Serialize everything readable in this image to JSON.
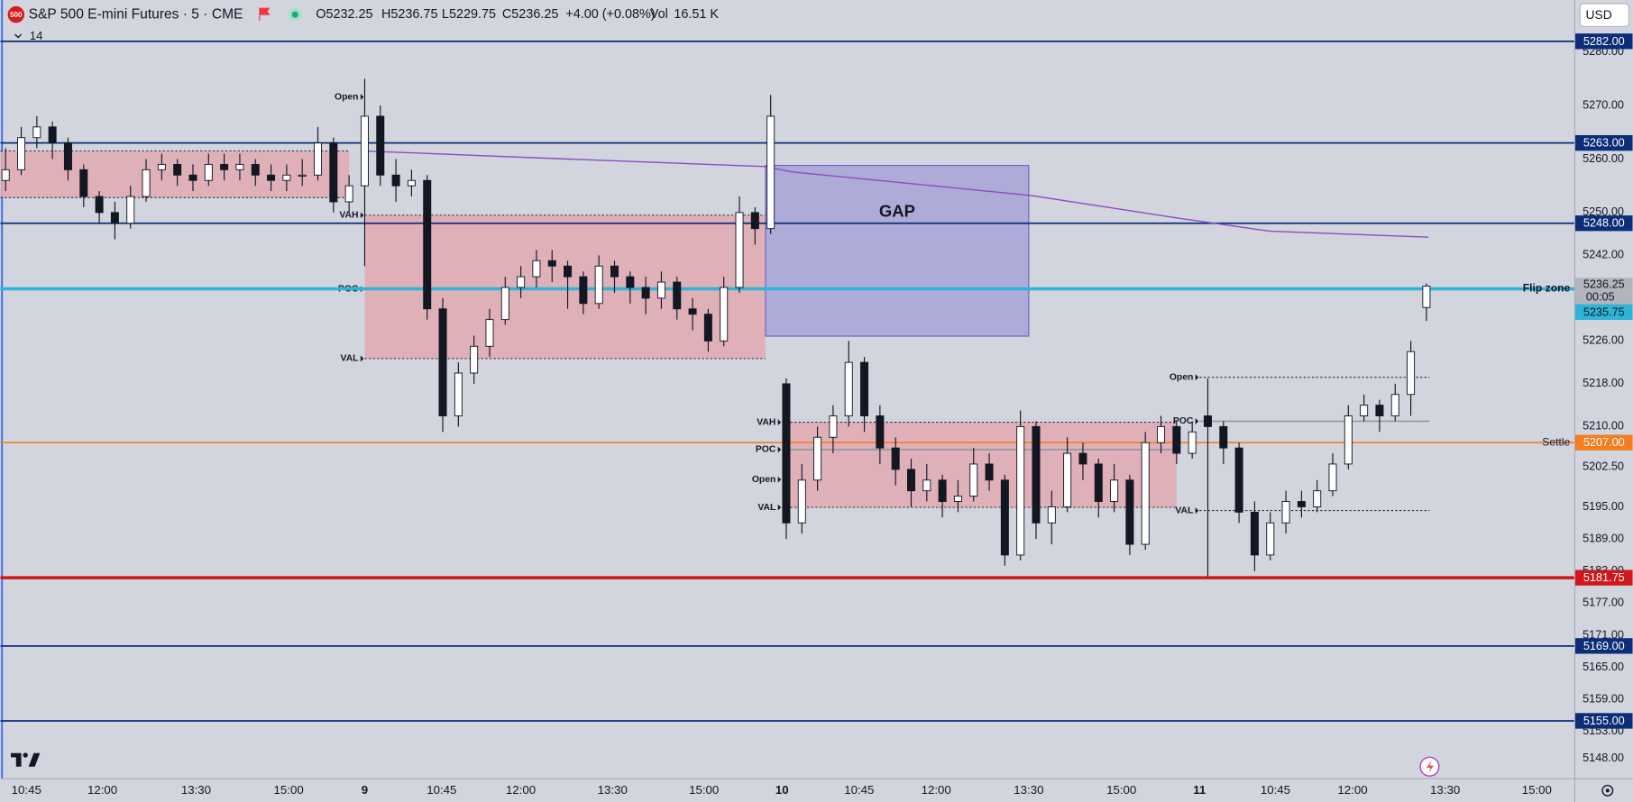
{
  "chart_data": {
    "type": "candlestick",
    "title": "S&P 500 E-mini Futures · 5 · CME",
    "logo": "500",
    "indicators_count": "14",
    "currency": "USD",
    "header": {
      "open": "O5232.25",
      "high": "H5236.75",
      "low": "L5229.75",
      "close": "C5236.25",
      "change": "+4.00 (+0.08%)",
      "vol_label": "Vol",
      "vol": "16.51 K"
    },
    "up_color": "#ffffff",
    "down_color": "#131722",
    "candles": [
      [
        5256,
        5262,
        5254,
        5258
      ],
      [
        5258,
        5266,
        5257,
        5264
      ],
      [
        5264,
        5268,
        5262,
        5266
      ],
      [
        5266,
        5267,
        5260,
        5263
      ],
      [
        5263,
        5264,
        5256,
        5258
      ],
      [
        5258,
        5259,
        5251,
        5253
      ],
      [
        5253,
        5254,
        5248,
        5250
      ],
      [
        5250,
        5252,
        5245,
        5248
      ],
      [
        5248,
        5255,
        5247,
        5253
      ],
      [
        5253,
        5260,
        5252,
        5258
      ],
      [
        5258,
        5261,
        5256,
        5259
      ],
      [
        5259,
        5260,
        5255,
        5257
      ],
      [
        5257,
        5259,
        5254,
        5256
      ],
      [
        5256,
        5261,
        5255,
        5259
      ],
      [
        5259,
        5261,
        5256,
        5258
      ],
      [
        5258,
        5261,
        5256,
        5259
      ],
      [
        5259,
        5260,
        5255,
        5257
      ],
      [
        5257,
        5259,
        5254,
        5256
      ],
      [
        5256,
        5259,
        5254,
        5257
      ],
      [
        5257,
        5260,
        5255,
        5257
      ],
      [
        5257,
        5266,
        5256,
        5263
      ],
      [
        5263,
        5264,
        5250,
        5252
      ],
      [
        5252,
        5257,
        5250,
        5255
      ],
      [
        5255,
        5275,
        5240,
        5268
      ],
      [
        5268,
        5270,
        5255,
        5257
      ],
      [
        5257,
        5260,
        5252,
        5255
      ],
      [
        5255,
        5258,
        5253,
        5256
      ],
      [
        5256,
        5257,
        5230,
        5232
      ],
      [
        5232,
        5234,
        5209,
        5212
      ],
      [
        5212,
        5222,
        5210,
        5220
      ],
      [
        5220,
        5227,
        5218,
        5225
      ],
      [
        5225,
        5232,
        5223,
        5230
      ],
      [
        5230,
        5238,
        5229,
        5236
      ],
      [
        5236,
        5240,
        5234,
        5238
      ],
      [
        5238,
        5243,
        5236,
        5241
      ],
      [
        5241,
        5243,
        5237,
        5240
      ],
      [
        5240,
        5241,
        5232,
        5238
      ],
      [
        5238,
        5239,
        5231,
        5233
      ],
      [
        5233,
        5242,
        5232,
        5240
      ],
      [
        5240,
        5241,
        5235,
        5238
      ],
      [
        5238,
        5239,
        5233,
        5236
      ],
      [
        5236,
        5238,
        5231,
        5234
      ],
      [
        5234,
        5239,
        5232,
        5237
      ],
      [
        5237,
        5238,
        5230,
        5232
      ],
      [
        5232,
        5234,
        5228,
        5231
      ],
      [
        5231,
        5232,
        5224,
        5226
      ],
      [
        5226,
        5238,
        5225,
        5236
      ],
      [
        5236,
        5253,
        5235,
        5250
      ],
      [
        5250,
        5251,
        5244,
        5247
      ],
      [
        5247,
        5272,
        5246,
        5268
      ],
      [
        5218,
        5219,
        5189,
        5192
      ],
      [
        5192,
        5203,
        5190,
        5200
      ],
      [
        5200,
        5210,
        5198,
        5208
      ],
      [
        5208,
        5214,
        5205,
        5212
      ],
      [
        5212,
        5226,
        5210,
        5222
      ],
      [
        5222,
        5223,
        5209,
        5212
      ],
      [
        5212,
        5214,
        5203,
        5206
      ],
      [
        5206,
        5208,
        5199,
        5202
      ],
      [
        5202,
        5204,
        5195,
        5198
      ],
      [
        5198,
        5203,
        5196,
        5200
      ],
      [
        5200,
        5201,
        5193,
        5196
      ],
      [
        5196,
        5200,
        5194,
        5197
      ],
      [
        5197,
        5206,
        5196,
        5203
      ],
      [
        5203,
        5205,
        5198,
        5200
      ],
      [
        5200,
        5201,
        5184,
        5186
      ],
      [
        5186,
        5213,
        5185,
        5210
      ],
      [
        5210,
        5211,
        5189,
        5192
      ],
      [
        5192,
        5198,
        5188,
        5195
      ],
      [
        5195,
        5208,
        5194,
        5205
      ],
      [
        5205,
        5207,
        5200,
        5203
      ],
      [
        5203,
        5204,
        5193,
        5196
      ],
      [
        5196,
        5203,
        5194,
        5200
      ],
      [
        5200,
        5201,
        5186,
        5188
      ],
      [
        5188,
        5209,
        5187,
        5207
      ],
      [
        5207,
        5212,
        5205,
        5210
      ],
      [
        5210,
        5211,
        5203,
        5205
      ],
      [
        5205,
        5211,
        5204,
        5209
      ],
      [
        5212,
        5219,
        5182,
        5210
      ],
      [
        5210,
        5211,
        5203,
        5206
      ],
      [
        5206,
        5207,
        5192,
        5194
      ],
      [
        5194,
        5196,
        5183,
        5186
      ],
      [
        5186,
        5194,
        5185,
        5192
      ],
      [
        5192,
        5198,
        5190,
        5196
      ],
      [
        5196,
        5198,
        5193,
        5195
      ],
      [
        5195,
        5200,
        5194,
        5198
      ],
      [
        5198,
        5205,
        5197,
        5203
      ],
      [
        5203,
        5214,
        5202,
        5212
      ],
      [
        5212,
        5216,
        5211,
        5214
      ],
      [
        5214,
        5215,
        5209,
        5212
      ],
      [
        5212,
        5218,
        5211,
        5216
      ],
      [
        5216,
        5226,
        5212,
        5224
      ],
      [
        5232.25,
        5236.75,
        5229.75,
        5236.25
      ]
    ],
    "xlim": [
      -0.33,
      100.47
    ],
    "xticks": [
      {
        "value": 1.33,
        "label": "10:45"
      },
      {
        "value": 6.2,
        "label": "12:00"
      },
      {
        "value": 12.2,
        "label": "13:30"
      },
      {
        "value": 18.13,
        "label": "15:00"
      },
      {
        "value": 23,
        "label": "9"
      },
      {
        "value": 27.93,
        "label": "10:45"
      },
      {
        "value": 33,
        "label": "12:00"
      },
      {
        "value": 38.87,
        "label": "13:30"
      },
      {
        "value": 44.73,
        "label": "15:00"
      },
      {
        "value": 49.73,
        "label": "10"
      },
      {
        "value": 54.67,
        "label": "10:45"
      },
      {
        "value": 59.6,
        "label": "12:00"
      },
      {
        "value": 65.53,
        "label": "13:30"
      },
      {
        "value": 71.47,
        "label": "15:00"
      },
      {
        "value": 76.47,
        "label": "11"
      },
      {
        "value": 81.33,
        "label": "10:45"
      },
      {
        "value": 86.27,
        "label": "12:00"
      },
      {
        "value": 92.2,
        "label": "13:30"
      },
      {
        "value": 98.07,
        "label": "15:00"
      }
    ],
    "ylim": [
      5144.31,
      5289.72
    ],
    "yticks": [
      {
        "value": 5280,
        "label": "5280.00"
      },
      {
        "value": 5270,
        "label": "5270.00"
      },
      {
        "value": 5260,
        "label": "5260.00"
      },
      {
        "value": 5250,
        "label": "5250.00"
      },
      {
        "value": 5242,
        "label": "5242.00"
      },
      {
        "value": 5226,
        "label": "5226.00"
      },
      {
        "value": 5218,
        "label": "5218.00"
      },
      {
        "value": 5210,
        "label": "5210.00"
      },
      {
        "value": 5202.5,
        "label": "5202.50"
      },
      {
        "value": 5195,
        "label": "5195.00"
      },
      {
        "value": 5189,
        "label": "5189.00"
      },
      {
        "value": 5183,
        "label": "5183.00"
      },
      {
        "value": 5177,
        "label": "5177.00"
      },
      {
        "value": 5171,
        "label": "5171.00"
      },
      {
        "value": 5165,
        "label": "5165.00"
      },
      {
        "value": 5159,
        "label": "5159.00"
      },
      {
        "value": 5153,
        "label": "5153.00"
      },
      {
        "value": 5148,
        "label": "5148.00"
      }
    ],
    "levels": [
      {
        "value": 5282,
        "label": "5282.00",
        "color": "#0c2d78"
      },
      {
        "value": 5263,
        "label": "5263.00",
        "color": "#0c2d78"
      },
      {
        "value": 5248,
        "label": "5248.00",
        "color": "#0c2d78"
      },
      {
        "value": 5235.75,
        "label": "5235.75",
        "color": "#2cb5d6",
        "name": "Flip zone",
        "emphasis": true
      },
      {
        "value": 5207,
        "label": "5207.00",
        "color": "#f57c1f",
        "name": "Settle"
      },
      {
        "value": 5181.75,
        "label": "5181.75",
        "color": "#d0171b",
        "emphasis": true
      },
      {
        "value": 5169,
        "label": "5169.00",
        "color": "#0c2d78"
      },
      {
        "value": 5155,
        "label": "5155.00",
        "color": "#0c2d78"
      }
    ],
    "current_price": {
      "value": 5236.25,
      "label": "5236.25",
      "countdown": "00:05"
    },
    "vwap": {
      "color": "#8a4cc2",
      "x": [
        23,
        36,
        48.67,
        50.33,
        65.67,
        75,
        81,
        91.13
      ],
      "values": [
        5261.5,
        5260,
        5258.6,
        5257.6,
        5253.2,
        5249,
        5246.5,
        5245.4
      ]
    },
    "gap": {
      "label": "GAP",
      "x": [
        48.67,
        65.53
      ],
      "y": [
        5226.9,
        5258.8
      ],
      "color": "#9b95d6"
    },
    "value_areas": [
      {
        "x": [
          -0.33,
          22
        ],
        "vah": 5261.5,
        "val": 5252.8,
        "fill": "#e3a9b3",
        "tags": []
      },
      {
        "x": [
          23,
          48.67
        ],
        "vah": 5249.5,
        "val": 5222.7,
        "fill": "#e3a9b3",
        "tags": [
          {
            "label": "Open",
            "value": 5271.6
          },
          {
            "label": "VAH",
            "value": 5249.5
          },
          {
            "label": "POC",
            "value": 5235.7
          },
          {
            "label": "VAL",
            "value": 5222.7
          }
        ]
      },
      {
        "x": [
          49.73,
          75
        ],
        "vah": 5210.8,
        "val": 5194.9,
        "fill": "#e3a9b3",
        "tags": [
          {
            "label": "VAH",
            "value": 5210.8
          },
          {
            "label": "POC",
            "value": 5205.7
          },
          {
            "label": "Open",
            "value": 5200.1
          },
          {
            "label": "VAL",
            "value": 5194.9
          }
        ]
      },
      {
        "x": [
          76.47,
          91.2
        ],
        "vah": 5219.2,
        "val": 5194.3,
        "tags": [
          {
            "label": "Open",
            "value": 5219.2
          },
          {
            "label": "POC",
            "value": 5211
          },
          {
            "label": "VAL",
            "value": 5194.3
          }
        ]
      }
    ]
  }
}
